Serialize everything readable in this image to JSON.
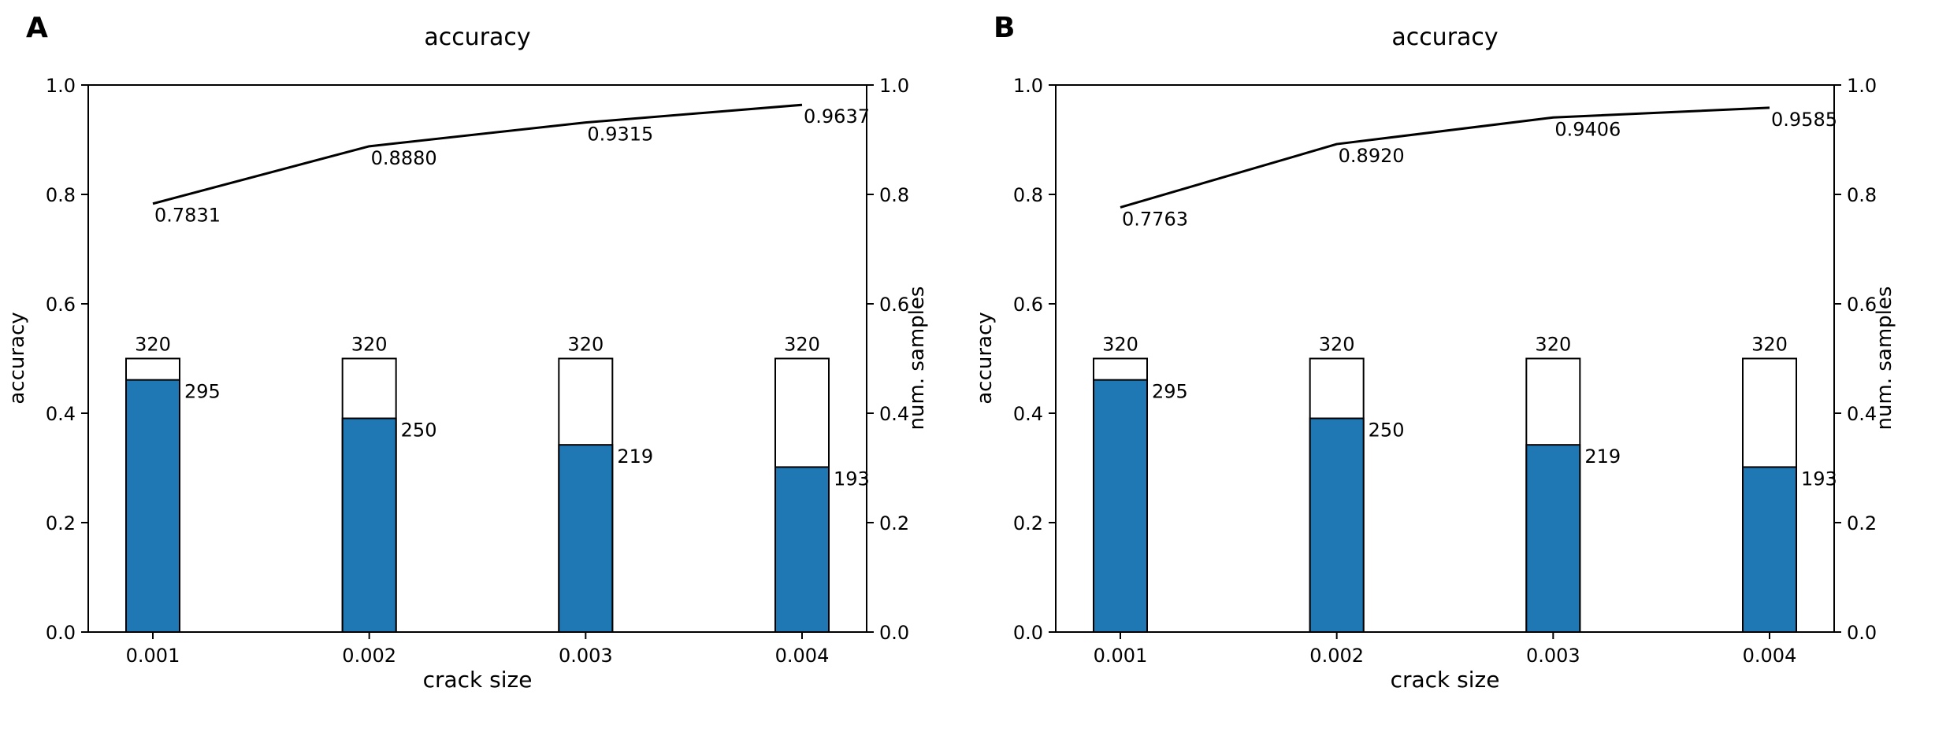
{
  "figure": {
    "background": "#ffffff",
    "line_color": "#000000",
    "bar_fill_total": "#ffffff",
    "bar_fill_count": "#1f77b4",
    "bar_edge": "#000000"
  },
  "chart_data": [
    {
      "panel_label": "A",
      "type": "bar+line",
      "title": "accuracy",
      "xlabel": "crack size",
      "ylabel_left": "accuracy",
      "ylabel_right": "num. samples",
      "categories": [
        "0.001",
        "0.002",
        "0.003",
        "0.004"
      ],
      "ylim": [
        0.0,
        1.0
      ],
      "yticks_left": [
        "0.0",
        "0.2",
        "0.4",
        "0.6",
        "0.8",
        "1.0"
      ],
      "yticks_right": [
        "0.0",
        "0.2",
        "0.4",
        "0.6",
        "0.8",
        "1.0"
      ],
      "grid": false,
      "legend": null,
      "line_series": {
        "name": "accuracy",
        "color": "#000000",
        "values": [
          0.7831,
          0.888,
          0.9315,
          0.9637
        ],
        "point_labels": [
          "0.7831",
          "0.8880",
          "0.9315",
          "0.9637"
        ]
      },
      "bar_series": [
        {
          "name": "total samples",
          "fill": "#ffffff",
          "edge": "#000000",
          "values": [
            320,
            320,
            320,
            320
          ],
          "value_labels": [
            "320",
            "320",
            "320",
            "320"
          ]
        },
        {
          "name": "correct samples",
          "fill": "#1f77b4",
          "edge": "#000000",
          "values": [
            295,
            250,
            219,
            193
          ],
          "value_labels": [
            "295",
            "250",
            "219",
            "193"
          ]
        }
      ],
      "bar_axis_mapping": {
        "samples_total": 320,
        "axis_height_at_total": 0.5
      }
    },
    {
      "panel_label": "B",
      "type": "bar+line",
      "title": "accuracy",
      "xlabel": "crack size",
      "ylabel_left": "accuracy",
      "ylabel_right": "num. samples",
      "categories": [
        "0.001",
        "0.002",
        "0.003",
        "0.004"
      ],
      "ylim": [
        0.0,
        1.0
      ],
      "yticks_left": [
        "0.0",
        "0.2",
        "0.4",
        "0.6",
        "0.8",
        "1.0"
      ],
      "yticks_right": [
        "0.0",
        "0.2",
        "0.4",
        "0.6",
        "0.8",
        "1.0"
      ],
      "grid": false,
      "legend": null,
      "line_series": {
        "name": "accuracy",
        "color": "#000000",
        "values": [
          0.7763,
          0.892,
          0.9406,
          0.9585
        ],
        "point_labels": [
          "0.7763",
          "0.8920",
          "0.9406",
          "0.9585"
        ]
      },
      "bar_series": [
        {
          "name": "total samples",
          "fill": "#ffffff",
          "edge": "#000000",
          "values": [
            320,
            320,
            320,
            320
          ],
          "value_labels": [
            "320",
            "320",
            "320",
            "320"
          ]
        },
        {
          "name": "correct samples",
          "fill": "#1f77b4",
          "edge": "#000000",
          "values": [
            295,
            250,
            219,
            193
          ],
          "value_labels": [
            "295",
            "250",
            "219",
            "193"
          ]
        }
      ],
      "bar_axis_mapping": {
        "samples_total": 320,
        "axis_height_at_total": 0.5
      }
    }
  ]
}
